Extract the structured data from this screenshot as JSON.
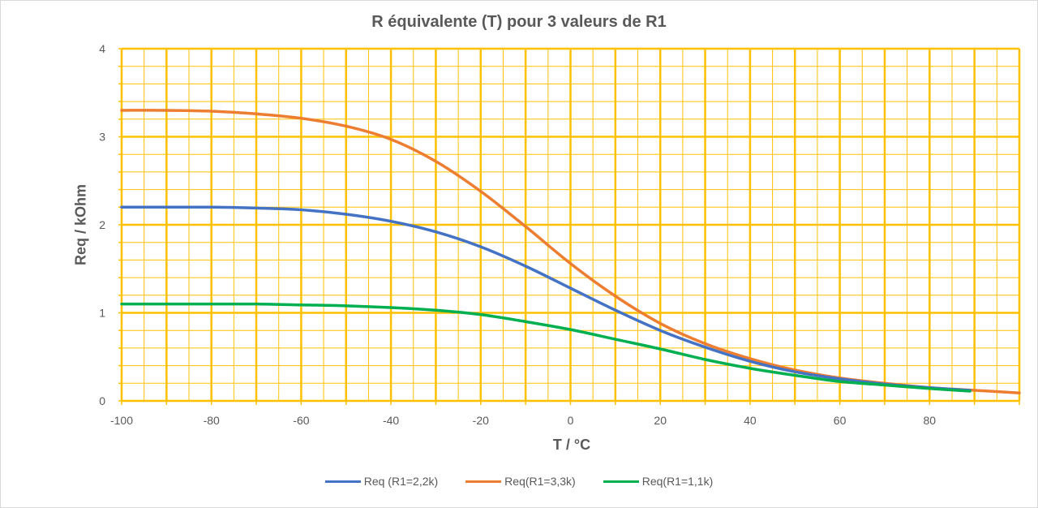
{
  "chart_data": {
    "type": "line",
    "title": "R équivalente (T) pour 3 valeurs de R1",
    "xlabel": "T / °C",
    "ylabel": "Req / kOhm",
    "xlim": [
      -100,
      100
    ],
    "ylim": [
      0,
      4
    ],
    "x_ticks": [
      -100,
      -80,
      -60,
      -40,
      -20,
      0,
      20,
      40,
      60,
      80
    ],
    "y_ticks": [
      0,
      1,
      2,
      3,
      4
    ],
    "grid": true,
    "grid_color": "#FFC000",
    "legend_position": "bottom",
    "series": [
      {
        "name": "Req (R1=2,2k)",
        "color": "#4472C4",
        "x": [
          -100,
          -90,
          -80,
          -70,
          -60,
          -50,
          -40,
          -30,
          -20,
          -10,
          0,
          10,
          20,
          30,
          40,
          50,
          60,
          70,
          80,
          89
        ],
        "y": [
          2.2,
          2.2,
          2.2,
          2.19,
          2.17,
          2.12,
          2.04,
          1.92,
          1.75,
          1.53,
          1.28,
          1.03,
          0.8,
          0.61,
          0.45,
          0.33,
          0.25,
          0.19,
          0.15,
          0.12
        ]
      },
      {
        "name": "Req(R1=3,3k)",
        "color": "#ED7D31",
        "x": [
          -100,
          -90,
          -80,
          -70,
          -60,
          -50,
          -40,
          -30,
          -20,
          -10,
          0,
          10,
          20,
          30,
          40,
          50,
          60,
          70,
          80,
          90,
          100
        ],
        "y": [
          3.3,
          3.3,
          3.29,
          3.26,
          3.21,
          3.12,
          2.97,
          2.72,
          2.38,
          1.98,
          1.56,
          1.19,
          0.88,
          0.65,
          0.48,
          0.35,
          0.26,
          0.2,
          0.15,
          0.12,
          0.09
        ]
      },
      {
        "name": "Req(R1=1,1k)",
        "color": "#00B050",
        "x": [
          -100,
          -90,
          -80,
          -70,
          -60,
          -50,
          -40,
          -30,
          -20,
          -10,
          0,
          10,
          20,
          30,
          40,
          50,
          60,
          70,
          80,
          89
        ],
        "y": [
          1.1,
          1.1,
          1.1,
          1.1,
          1.09,
          1.08,
          1.06,
          1.03,
          0.98,
          0.9,
          0.81,
          0.7,
          0.59,
          0.47,
          0.37,
          0.29,
          0.22,
          0.18,
          0.14,
          0.11
        ]
      }
    ]
  }
}
